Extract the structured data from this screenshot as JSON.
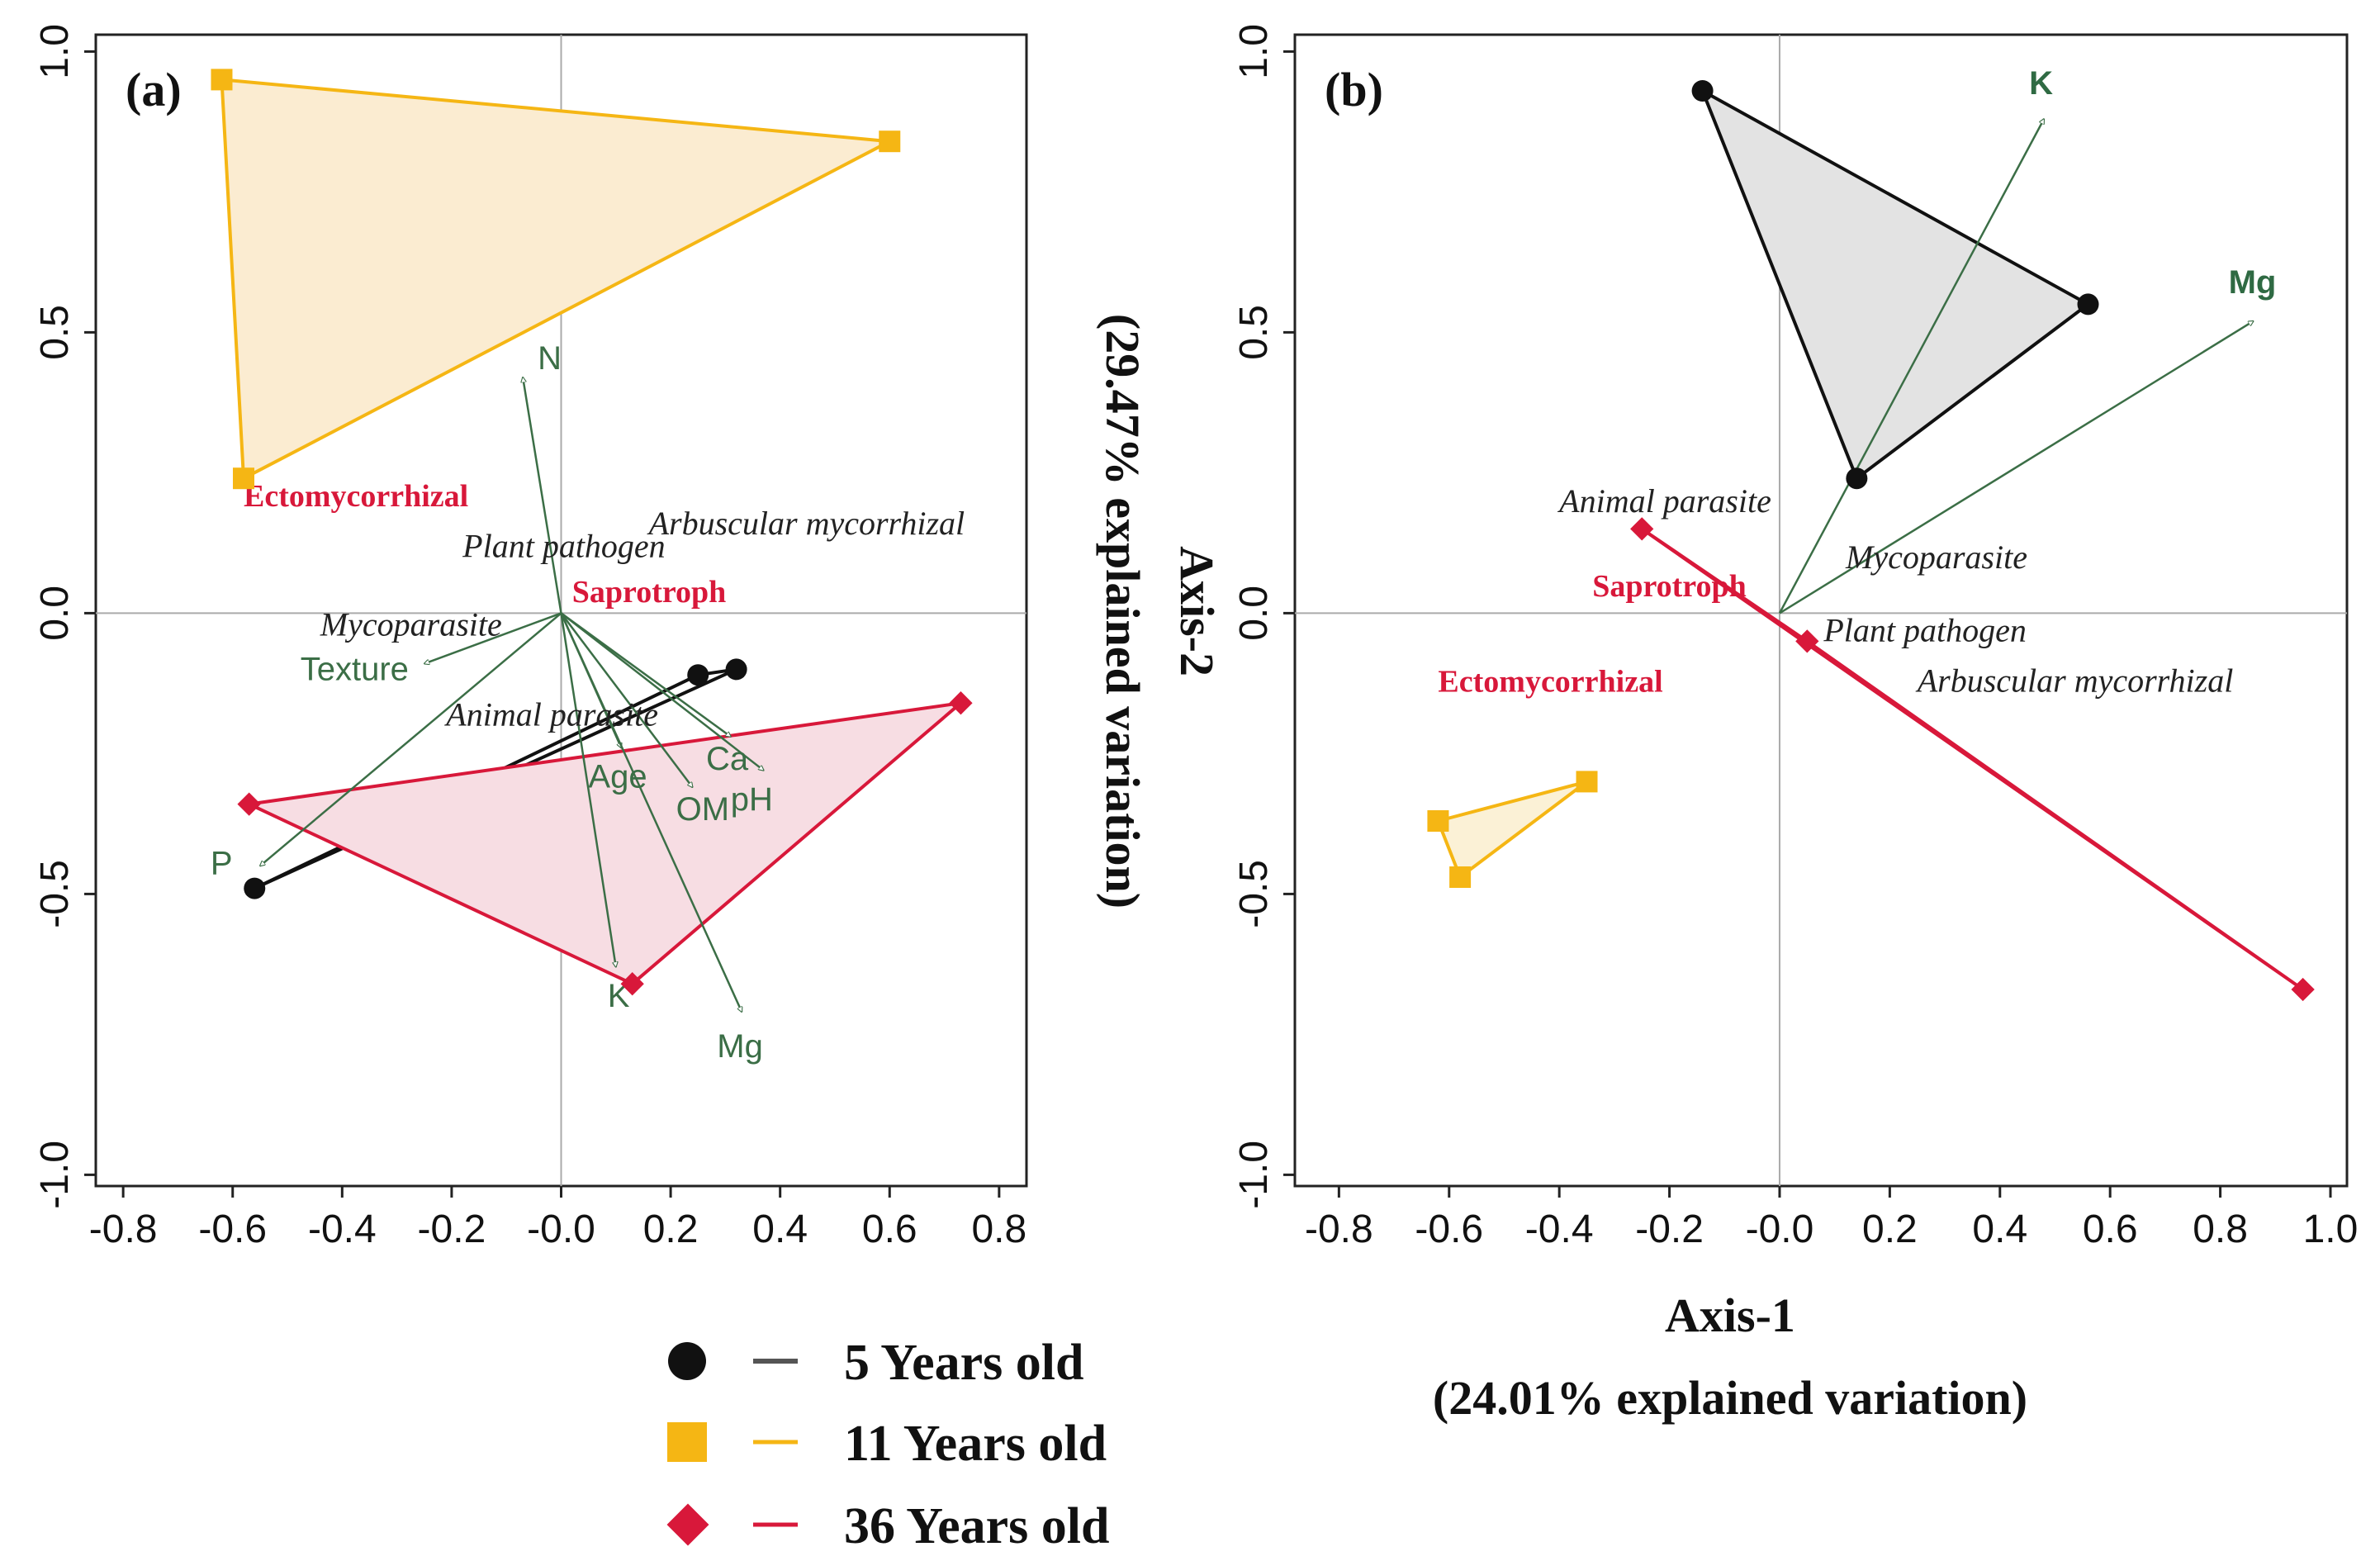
{
  "figure": {
    "axis1_title": "Axis-1",
    "axis1_subtitle": "(24.01% explained variation)",
    "axis2_title": "Axis-2",
    "axis2_subtitle": "(29.47% explained variation)"
  },
  "legend": [
    {
      "label": "5 Years old",
      "color": "#111111",
      "marker": "circle"
    },
    {
      "label": "11 Years old",
      "color": "#f5b614",
      "marker": "square"
    },
    {
      "label": "36 Years old",
      "color": "#d8183a",
      "marker": "diamond"
    }
  ],
  "chart_data": [
    {
      "type": "scatter",
      "title": "(a)",
      "xlim": [
        -0.85,
        0.85
      ],
      "ylim": [
        -1.02,
        1.03
      ],
      "xticks": [
        -0.8,
        -0.6,
        -0.4,
        -0.2,
        0.0,
        0.2,
        0.4,
        0.6,
        0.8
      ],
      "xtick_labels": [
        "-0.8",
        "-0.6",
        "-0.4",
        "-0.2",
        "-0.0",
        "0.2",
        "0.4",
        "0.6",
        "0.8"
      ],
      "yticks": [
        -1.0,
        -0.5,
        0.0,
        0.5,
        1.0
      ],
      "ytick_labels": [
        "-1.0",
        "-0.5",
        "0.0",
        "0.5",
        "1.0"
      ],
      "groups": [
        {
          "name": "5 Years old",
          "color": "#111111",
          "fill": "none",
          "marker": "circle",
          "points": [
            [
              -0.56,
              -0.49
            ],
            [
              0.25,
              -0.11
            ],
            [
              0.32,
              -0.1
            ]
          ]
        },
        {
          "name": "11 Years old",
          "color": "#f5b614",
          "fill": "#fbecd1",
          "marker": "square",
          "points": [
            [
              -0.62,
              0.95
            ],
            [
              0.6,
              0.84
            ],
            [
              -0.58,
              0.24
            ]
          ]
        },
        {
          "name": "36 Years old",
          "color": "#d8183a",
          "fill": "#f7dde3",
          "marker": "diamond",
          "points": [
            [
              -0.57,
              -0.34
            ],
            [
              0.73,
              -0.16
            ],
            [
              0.13,
              -0.66
            ]
          ]
        }
      ],
      "vectors": [
        {
          "label": "N",
          "x": -0.07,
          "y": 0.42
        },
        {
          "label": "Texture",
          "x": -0.25,
          "y": -0.09
        },
        {
          "label": "P",
          "x": -0.55,
          "y": -0.45
        },
        {
          "label": "Ca",
          "x": 0.31,
          "y": -0.22
        },
        {
          "label": "Age",
          "x": 0.11,
          "y": -0.24
        },
        {
          "label": "OM",
          "x": 0.24,
          "y": -0.31
        },
        {
          "label": "pH",
          "x": 0.37,
          "y": -0.28
        },
        {
          "label": "K",
          "x": 0.1,
          "y": -0.63
        },
        {
          "label": "Mg",
          "x": 0.33,
          "y": -0.71
        }
      ],
      "guilds": [
        {
          "label": "Ectomycorrhizal",
          "x": -0.58,
          "y": 0.19,
          "style": "red"
        },
        {
          "label": "Plant pathogen",
          "x": -0.18,
          "y": 0.1,
          "style": "italic"
        },
        {
          "label": "Arbuscular mycorrhizal",
          "x": 0.16,
          "y": 0.14,
          "style": "italic"
        },
        {
          "label": "Saprotroph",
          "x": 0.02,
          "y": 0.02,
          "style": "red"
        },
        {
          "label": "Mycoparasite",
          "x": -0.44,
          "y": -0.04,
          "style": "italic"
        },
        {
          "label": "Animal parasite",
          "x": -0.21,
          "y": -0.2,
          "style": "italic"
        }
      ]
    },
    {
      "type": "scatter",
      "title": "(b)",
      "xlim": [
        -0.88,
        1.03
      ],
      "ylim": [
        -1.02,
        1.03
      ],
      "xticks": [
        -0.8,
        -0.6,
        -0.4,
        -0.2,
        0.0,
        0.2,
        0.4,
        0.6,
        0.8,
        1.0
      ],
      "xtick_labels": [
        "-0.8",
        "-0.6",
        "-0.4",
        "-0.2",
        "-0.0",
        "0.2",
        "0.4",
        "0.6",
        "0.8",
        "1.0"
      ],
      "yticks": [
        -1.0,
        -0.5,
        0.0,
        0.5,
        1.0
      ],
      "ytick_labels": [
        "-1.0",
        "-0.5",
        "0.0",
        "0.5",
        "1.0"
      ],
      "groups": [
        {
          "name": "5 Years old",
          "color": "#111111",
          "fill": "#e3e3e3",
          "marker": "circle",
          "points": [
            [
              -0.14,
              0.93
            ],
            [
              0.56,
              0.55
            ],
            [
              0.14,
              0.24
            ]
          ]
        },
        {
          "name": "11 Years old",
          "color": "#f5b614",
          "fill": "#fbf1d6",
          "marker": "square",
          "points": [
            [
              -0.62,
              -0.37
            ],
            [
              -0.35,
              -0.3
            ],
            [
              -0.58,
              -0.47
            ]
          ]
        },
        {
          "name": "36 Years old",
          "color": "#d8183a",
          "fill": "none",
          "marker": "diamond",
          "points": [
            [
              -0.25,
              0.15
            ],
            [
              0.05,
              -0.05
            ],
            [
              0.95,
              -0.67
            ]
          ]
        }
      ],
      "vectors": [
        {
          "label": "K",
          "x": 0.48,
          "y": 0.88
        },
        {
          "label": "Mg",
          "x": 0.86,
          "y": 0.52
        }
      ],
      "guilds": [
        {
          "label": "Animal parasite",
          "x": -0.4,
          "y": 0.18,
          "style": "italic"
        },
        {
          "label": "Mycoparasite",
          "x": 0.12,
          "y": 0.08,
          "style": "italic"
        },
        {
          "label": "Saprotroph",
          "x": -0.34,
          "y": 0.03,
          "style": "red"
        },
        {
          "label": "Plant pathogen",
          "x": 0.08,
          "y": -0.05,
          "style": "italic"
        },
        {
          "label": "Ectomycorrhizal",
          "x": -0.62,
          "y": -0.14,
          "style": "red"
        },
        {
          "label": "Arbuscular mycorrhizal",
          "x": 0.25,
          "y": -0.14,
          "style": "italic"
        }
      ]
    }
  ]
}
